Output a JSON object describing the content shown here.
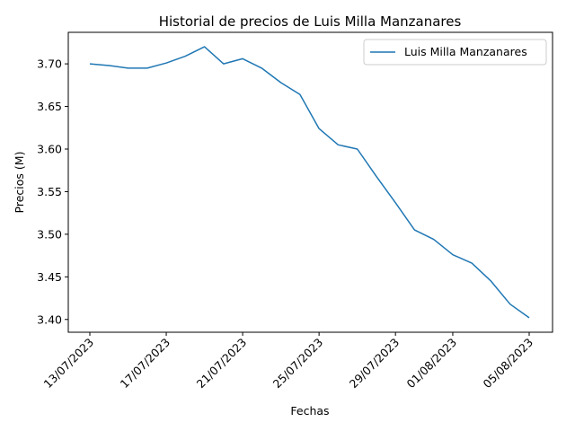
{
  "chart_data": {
    "type": "line",
    "title": "Historial de precios de Luis Milla Manzanares",
    "xlabel": "Fechas",
    "ylabel": "Precios (M)",
    "ylim": [
      3.385,
      3.737
    ],
    "yticks": [
      "3.40",
      "3.45",
      "3.50",
      "3.55",
      "3.60",
      "3.65",
      "3.70"
    ],
    "xticks": [
      "13/07/2023",
      "17/07/2023",
      "21/07/2023",
      "25/07/2023",
      "29/07/2023",
      "01/08/2023",
      "05/08/2023"
    ],
    "legend_position": "upper right",
    "grid": false,
    "series": [
      {
        "name": "Luis Milla Manzanares",
        "color": "#1f77b4",
        "x": [
          "13/07/2023",
          "14/07/2023",
          "15/07/2023",
          "16/07/2023",
          "17/07/2023",
          "18/07/2023",
          "19/07/2023",
          "20/07/2023",
          "21/07/2023",
          "22/07/2023",
          "23/07/2023",
          "24/07/2023",
          "25/07/2023",
          "26/07/2023",
          "27/07/2023",
          "28/07/2023",
          "29/07/2023",
          "30/07/2023",
          "31/07/2023",
          "01/08/2023",
          "02/08/2023",
          "03/08/2023",
          "04/08/2023",
          "05/08/2023"
        ],
        "values": [
          3.7,
          3.698,
          3.695,
          3.695,
          3.701,
          3.709,
          3.72,
          3.7,
          3.706,
          3.695,
          3.678,
          3.664,
          3.624,
          3.605,
          3.6,
          3.568,
          3.537,
          3.505,
          3.494,
          3.476,
          3.466,
          3.445,
          3.418,
          3.402
        ]
      }
    ]
  }
}
